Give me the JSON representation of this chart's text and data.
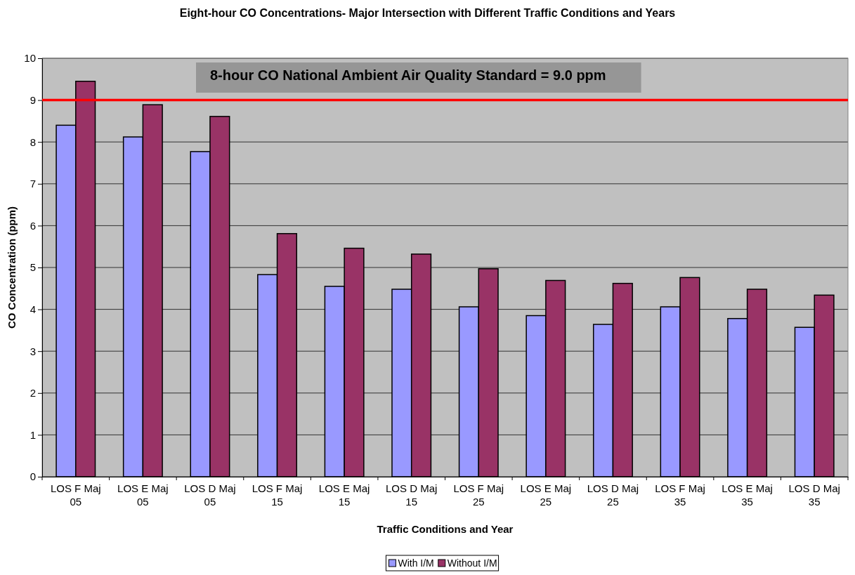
{
  "chart_data": {
    "type": "bar",
    "title": "Eight-hour CO Concentrations- Major Intersection with Different Traffic Conditions and Years",
    "xlabel": "Traffic Conditions and Year",
    "ylabel": "CO Concentration (ppm)",
    "categories": [
      "LOS F Maj 05",
      "LOS E Maj 05",
      "LOS D Maj 05",
      "LOS F Maj 15",
      "LOS E Maj 15",
      "LOS D Maj 15",
      "LOS F Maj 25",
      "LOS E Maj 25",
      "LOS D Maj 25",
      "LOS F Maj 35",
      "LOS E Maj 35",
      "LOS D Maj 35"
    ],
    "series": [
      {
        "name": "With I/M",
        "color": "#9999ff",
        "values": [
          8.4,
          8.12,
          7.77,
          4.83,
          4.55,
          4.48,
          4.06,
          3.85,
          3.64,
          4.06,
          3.78,
          3.57
        ]
      },
      {
        "name": "Without I/M",
        "color": "#993366",
        "values": [
          9.45,
          8.89,
          8.61,
          5.81,
          5.46,
          5.32,
          4.97,
          4.69,
          4.62,
          4.76,
          4.48,
          4.34
        ]
      }
    ],
    "ylim": [
      0,
      10
    ],
    "yticks": [
      0,
      1,
      2,
      3,
      4,
      5,
      6,
      7,
      8,
      9,
      10
    ],
    "grid": "y",
    "legend": "bottom",
    "ref_lines": [
      {
        "axis": "y",
        "value": 9,
        "label": "8-hour CO National Ambient Air Quality Standard = 9.0 ppm",
        "color": "#ff0000"
      }
    ]
  }
}
